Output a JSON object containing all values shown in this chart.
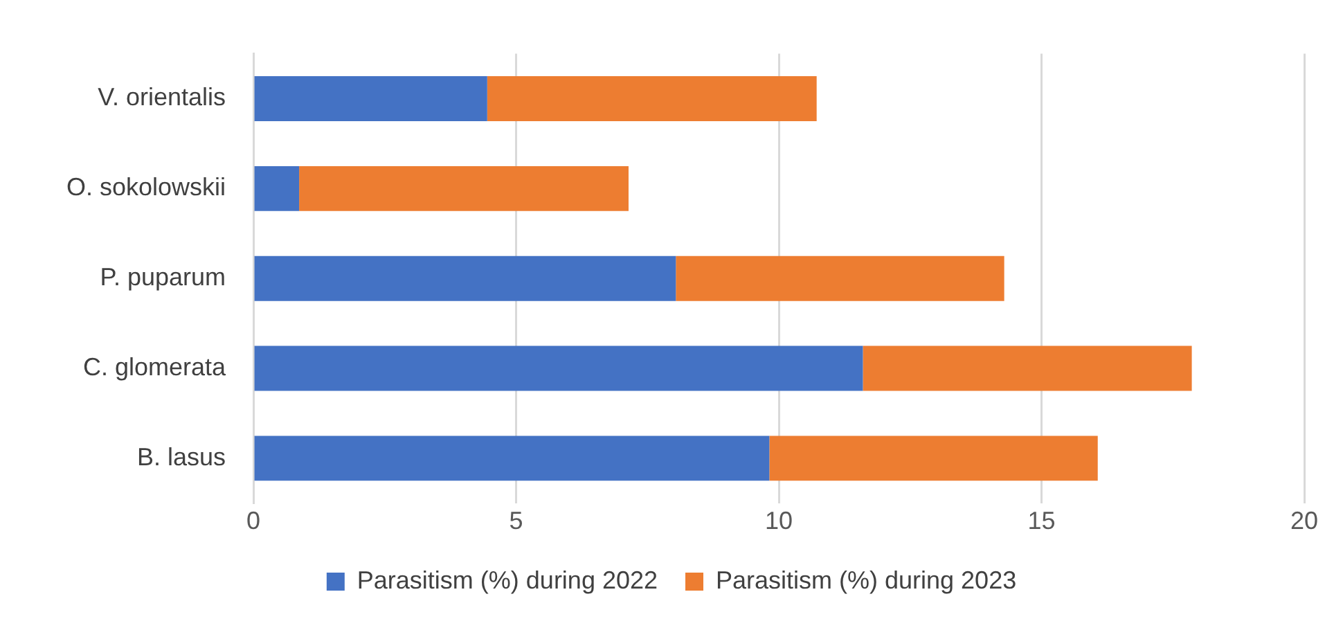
{
  "chart_data": {
    "type": "bar",
    "orientation": "horizontal",
    "stacked": true,
    "categories": [
      "V. orientalis",
      "O. sokolowskii",
      "P. puparum",
      "C. glomerata",
      "B. lasus"
    ],
    "series": [
      {
        "name": "Parasitism (%) during 2022",
        "color": "#4472c4",
        "values": [
          4.45,
          0.87,
          8.04,
          11.6,
          9.82
        ]
      },
      {
        "name": "Parasitism (%) during 2023",
        "color": "#ed7d31",
        "values": [
          6.27,
          6.27,
          6.25,
          6.26,
          6.25
        ]
      }
    ],
    "xlim": [
      0,
      20
    ],
    "xticks": [
      0,
      5,
      10,
      15,
      20
    ],
    "grid": "x",
    "legend": "bottom"
  }
}
